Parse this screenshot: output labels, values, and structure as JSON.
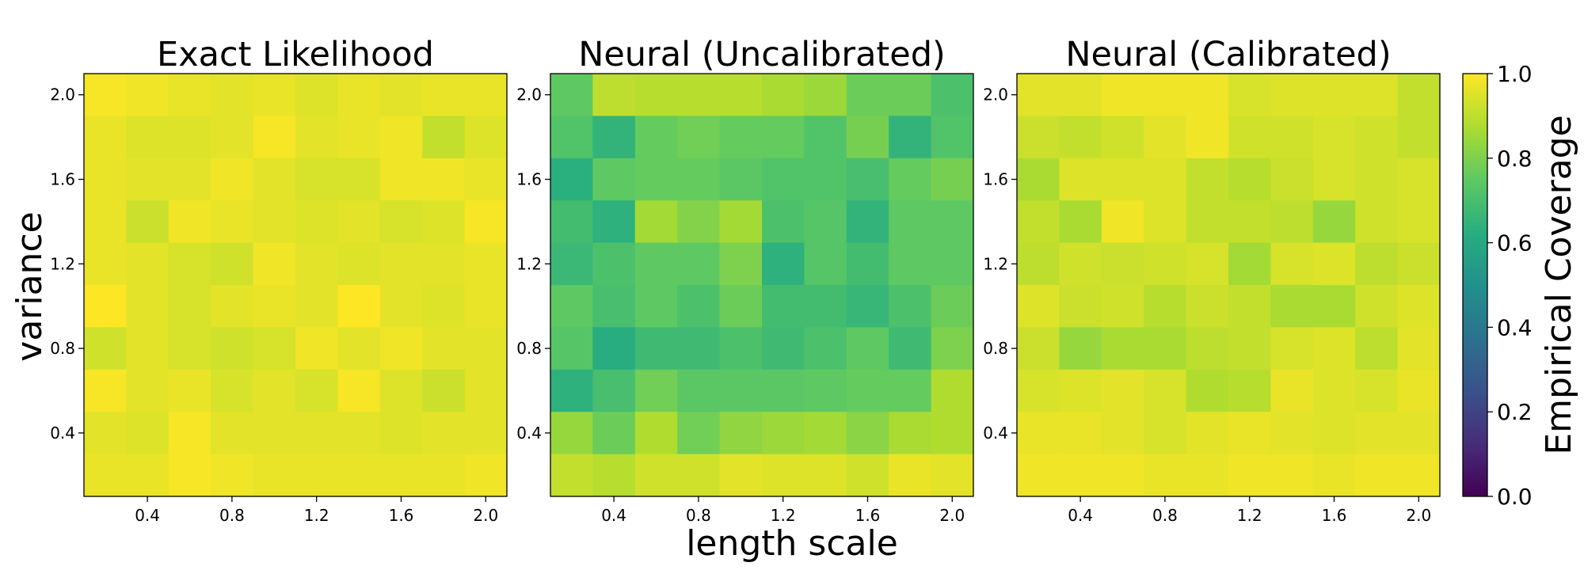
{
  "chart_data": {
    "type": "heatmap",
    "x_axis_label": "length scale",
    "y_axis_label": "variance",
    "colorbar_label": "Empirical Coverage",
    "colormap": "viridis",
    "color_range": [
      0.0,
      1.0
    ],
    "colorbar_ticks": [
      "0.0",
      "0.2",
      "0.4",
      "0.6",
      "0.8",
      "1.0"
    ],
    "x_range": [
      0.1,
      2.1
    ],
    "y_range": [
      0.1,
      2.1
    ],
    "x_ticks": [
      "0.4",
      "0.8",
      "1.2",
      "1.6",
      "2.0"
    ],
    "y_ticks": [
      "0.4",
      "0.8",
      "1.2",
      "1.6",
      "2.0"
    ],
    "grid": false,
    "panels": [
      {
        "title": "Exact Likelihood",
        "rows_top_to_bottom": [
          [
            0.99,
            0.98,
            0.97,
            0.96,
            0.97,
            0.95,
            0.97,
            0.96,
            0.97,
            0.97
          ],
          [
            0.97,
            0.95,
            0.95,
            0.96,
            0.99,
            0.96,
            0.97,
            0.98,
            0.91,
            0.95
          ],
          [
            0.97,
            0.96,
            0.96,
            0.98,
            0.96,
            0.94,
            0.94,
            0.98,
            0.98,
            0.97
          ],
          [
            0.97,
            0.92,
            0.98,
            0.97,
            0.96,
            0.95,
            0.96,
            0.94,
            0.95,
            0.99
          ],
          [
            0.97,
            0.96,
            0.94,
            0.93,
            0.98,
            0.96,
            0.95,
            0.96,
            0.96,
            0.97
          ],
          [
            1.0,
            0.96,
            0.94,
            0.96,
            0.97,
            0.96,
            1.0,
            0.96,
            0.95,
            0.97
          ],
          [
            0.93,
            0.96,
            0.94,
            0.93,
            0.94,
            0.98,
            0.96,
            0.98,
            0.96,
            0.96
          ],
          [
            0.99,
            0.96,
            0.97,
            0.94,
            0.96,
            0.94,
            0.99,
            0.95,
            0.92,
            0.96
          ],
          [
            0.96,
            0.95,
            0.99,
            0.96,
            0.96,
            0.96,
            0.96,
            0.95,
            0.96,
            0.96
          ],
          [
            0.97,
            0.97,
            0.99,
            0.98,
            0.97,
            0.97,
            0.97,
            0.97,
            0.97,
            0.98
          ]
        ]
      },
      {
        "title": "Neural (Uncalibrated)",
        "rows_top_to_bottom": [
          [
            0.75,
            0.9,
            0.89,
            0.89,
            0.89,
            0.87,
            0.85,
            0.77,
            0.77,
            0.71
          ],
          [
            0.72,
            0.65,
            0.76,
            0.78,
            0.76,
            0.76,
            0.72,
            0.79,
            0.65,
            0.72
          ],
          [
            0.63,
            0.75,
            0.76,
            0.76,
            0.74,
            0.72,
            0.72,
            0.7,
            0.76,
            0.79
          ],
          [
            0.69,
            0.64,
            0.86,
            0.81,
            0.86,
            0.71,
            0.73,
            0.65,
            0.75,
            0.75
          ],
          [
            0.67,
            0.71,
            0.75,
            0.75,
            0.8,
            0.64,
            0.73,
            0.69,
            0.75,
            0.75
          ],
          [
            0.75,
            0.7,
            0.75,
            0.71,
            0.77,
            0.69,
            0.69,
            0.66,
            0.71,
            0.77
          ],
          [
            0.73,
            0.62,
            0.68,
            0.68,
            0.71,
            0.68,
            0.71,
            0.75,
            0.68,
            0.8
          ],
          [
            0.64,
            0.7,
            0.78,
            0.74,
            0.74,
            0.74,
            0.75,
            0.76,
            0.76,
            0.88
          ],
          [
            0.84,
            0.77,
            0.88,
            0.78,
            0.83,
            0.85,
            0.86,
            0.82,
            0.87,
            0.88
          ],
          [
            0.91,
            0.89,
            0.93,
            0.93,
            0.96,
            0.95,
            0.95,
            0.93,
            0.97,
            0.96
          ]
        ]
      },
      {
        "title": "Neural (Calibrated)",
        "rows_top_to_bottom": [
          [
            0.96,
            0.96,
            0.98,
            0.98,
            0.98,
            0.94,
            0.95,
            0.95,
            0.95,
            0.91
          ],
          [
            0.92,
            0.91,
            0.93,
            0.96,
            0.98,
            0.93,
            0.93,
            0.94,
            0.93,
            0.91
          ],
          [
            0.87,
            0.95,
            0.95,
            0.95,
            0.91,
            0.89,
            0.92,
            0.94,
            0.93,
            0.94
          ],
          [
            0.91,
            0.87,
            0.98,
            0.95,
            0.91,
            0.91,
            0.9,
            0.84,
            0.93,
            0.94
          ],
          [
            0.9,
            0.93,
            0.92,
            0.93,
            0.94,
            0.86,
            0.94,
            0.95,
            0.9,
            0.92
          ],
          [
            0.95,
            0.92,
            0.93,
            0.89,
            0.92,
            0.91,
            0.87,
            0.87,
            0.93,
            0.95
          ],
          [
            0.92,
            0.84,
            0.87,
            0.87,
            0.9,
            0.91,
            0.94,
            0.95,
            0.9,
            0.96
          ],
          [
            0.94,
            0.95,
            0.96,
            0.94,
            0.88,
            0.89,
            0.97,
            0.95,
            0.94,
            0.97
          ],
          [
            0.97,
            0.97,
            0.96,
            0.94,
            0.96,
            0.97,
            0.96,
            0.95,
            0.96,
            0.96
          ],
          [
            0.98,
            0.98,
            0.98,
            0.97,
            0.97,
            0.98,
            0.98,
            0.97,
            0.98,
            0.98
          ]
        ]
      }
    ]
  }
}
